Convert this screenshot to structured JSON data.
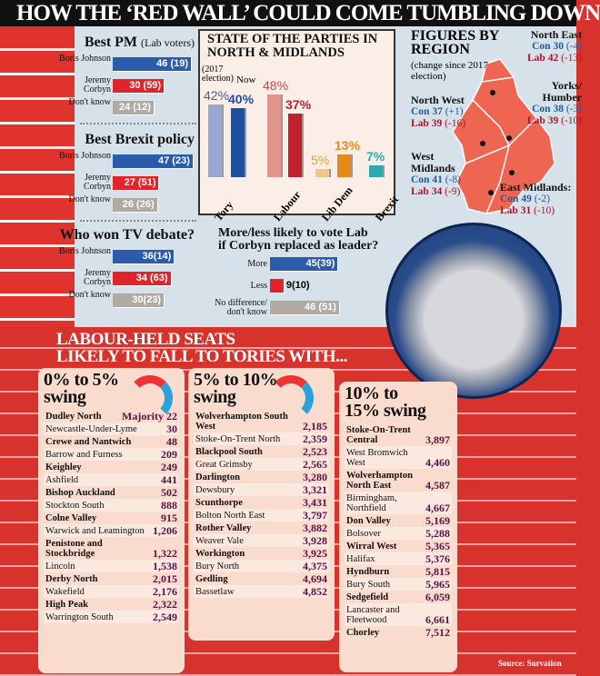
{
  "title": "HOW THE ‘RED WALL’ COULD COME TUMBLING DOWN",
  "colors": {
    "con": "#2a5cab",
    "lab": "#e0242c",
    "dont_know": "#b0aaa2",
    "tory_2017": "#9aa6d4",
    "tory_now": "#1f4f9e",
    "labour_2017": "#e0958a",
    "labour_now": "#c21f2f",
    "libdem_2017": "#f4c28a",
    "libdem_now": "#e68a1c",
    "brexit_now": "#2fa8b0"
  },
  "polls": [
    {
      "title": "Best PM",
      "subtitle": "(Lab voters)",
      "rows": [
        {
          "label": "Boris Johnson",
          "value": 46,
          "text": "46 (19)"
        },
        {
          "label": "Jeremy Corbyn",
          "value": 30,
          "text": "30 (59)"
        },
        {
          "label": "Don't know",
          "value": 24,
          "text": "24 (12)"
        }
      ]
    },
    {
      "title": "Best Brexit policy",
      "subtitle": "",
      "rows": [
        {
          "label": "Boris Johnson",
          "value": 47,
          "text": "47 (23)"
        },
        {
          "label": "Jeremy Corbyn",
          "value": 27,
          "text": "27 (51)"
        },
        {
          "label": "Don't know",
          "value": 26,
          "text": "26 (26)"
        }
      ]
    },
    {
      "title": "Who won TV debate?",
      "subtitle": "",
      "rows": [
        {
          "label": "Boris Johnson",
          "value": 36,
          "text": "36(14)"
        },
        {
          "label": "Jeremy Corbyn",
          "value": 34,
          "text": "34 (63)"
        },
        {
          "label": "Don't know",
          "value": 30,
          "text": "30(23)"
        }
      ]
    }
  ],
  "corbyn_poll": {
    "title_1": "More/less likely to vote Lab",
    "title_2": "if Corbyn replaced as leader?",
    "rows": [
      {
        "label": "More",
        "value": 45,
        "text": "45(39)"
      },
      {
        "label": "Less",
        "value": 9,
        "text": "9(10)"
      },
      {
        "label": "No difference/ don't know",
        "value": 46,
        "text": "46 (51)"
      }
    ]
  },
  "chart_data": {
    "type": "bar",
    "title": "STATE OF THE PARTIES IN NORTH & MIDLANDS",
    "series_labels": {
      "2017": "(2017 election)",
      "now": "Now"
    },
    "categories": [
      "Tory",
      "Labour",
      "Lib Dem",
      "Brexit"
    ],
    "series": [
      {
        "name": "(2017 election)",
        "values": [
          42,
          48,
          5,
          null
        ]
      },
      {
        "name": "Now",
        "values": [
          40,
          37,
          13,
          7
        ]
      }
    ],
    "ylim": [
      0,
      50
    ],
    "unit": "%"
  },
  "map": {
    "title": "FIGURES BY REGION",
    "subtitle": "(change since 2017 election)",
    "regions": [
      {
        "name": "North East",
        "con": "Con 30",
        "con_chg": "(-4)",
        "lab": "Lab 42",
        "lab_chg": "(-13)"
      },
      {
        "name": "Yorks/ Humber",
        "con": "Con 38",
        "con_chg": "(-3)",
        "lab": "Lab 39",
        "lab_chg": "(-10)"
      },
      {
        "name": "North West",
        "con": "Con 37",
        "con_chg": "(+1)",
        "lab": "Lab 39",
        "lab_chg": "(-16)"
      },
      {
        "name": "West Midlands",
        "con": "Con 41",
        "con_chg": "(-8)",
        "lab": "Lab 34",
        "lab_chg": "(-9)"
      },
      {
        "name": "East Midlands:",
        "con": "Con 49",
        "con_chg": "(-2)",
        "lab": "Lab 31",
        "lab_chg": "(-10)"
      }
    ]
  },
  "seats": {
    "title_1": "LABOUR-HELD SEATS",
    "title_2": "LIKELY TO FALL TO TORIES WITH...",
    "majority_label": "Majority",
    "groups": [
      {
        "heading_1": "0% to 5%",
        "heading_2": "swing",
        "rows": [
          [
            "Dudley North",
            "22"
          ],
          [
            "Newcastle-Under-Lyme",
            "30"
          ],
          [
            "Crewe and Nantwich",
            "48"
          ],
          [
            "Barrow and Furness",
            "209"
          ],
          [
            "Keighley",
            "249"
          ],
          [
            "Ashfield",
            "441"
          ],
          [
            "Bishop Auckland",
            "502"
          ],
          [
            "Stockton South",
            "888"
          ],
          [
            "Colne Valley",
            "915"
          ],
          [
            "Warwick and Leamington",
            "1,206"
          ],
          [
            "Penistone and Stockbridge",
            "1,322"
          ],
          [
            "Lincoln",
            "1,538"
          ],
          [
            "Derby North",
            "2,015"
          ],
          [
            "Wakefield",
            "2,176"
          ],
          [
            "High Peak",
            "2,322"
          ],
          [
            "Warrington South",
            "2,549"
          ]
        ]
      },
      {
        "heading_1": "5% to 10%",
        "heading_2": "swing",
        "rows": [
          [
            "Wolverhampton South West",
            "2,185"
          ],
          [
            "Stoke-On-Trent North",
            "2,359"
          ],
          [
            "Blackpool South",
            "2,523"
          ],
          [
            "Great Grimsby",
            "2,565"
          ],
          [
            "Darlington",
            "3,280"
          ],
          [
            "Dewsbury",
            "3,321"
          ],
          [
            "Scunthorpe",
            "3,431"
          ],
          [
            "Bolton North East",
            "3,797"
          ],
          [
            "Rother Valley",
            "3,882"
          ],
          [
            "Weaver Vale",
            "3,928"
          ],
          [
            "Workington",
            "3,925"
          ],
          [
            "Bury North",
            "4,375"
          ],
          [
            "Gedling",
            "4,694"
          ],
          [
            "Bassetlaw",
            "4,852"
          ]
        ]
      },
      {
        "heading_1": "10% to",
        "heading_2": "15% swing",
        "rows": [
          [
            "Stoke-On-Trent Central",
            "3,897"
          ],
          [
            "West Bromwich West",
            "4,460"
          ],
          [
            "Wolverhampton North East",
            "4,587"
          ],
          [
            "Birmingham, Northfield",
            "4,667"
          ],
          [
            "Don Valley",
            "5,169"
          ],
          [
            "Bolsover",
            "5,288"
          ],
          [
            "Wirral West",
            "5,365"
          ],
          [
            "Halifax",
            "5,376"
          ],
          [
            "Hyndburn",
            "5,815"
          ],
          [
            "Bury South",
            "5,965"
          ],
          [
            "Sedgefield",
            "6,059"
          ],
          [
            "Lancaster and Fleetwood",
            "6,661"
          ],
          [
            "Chorley",
            "7,512"
          ]
        ]
      }
    ]
  },
  "source": "Source: Survation"
}
